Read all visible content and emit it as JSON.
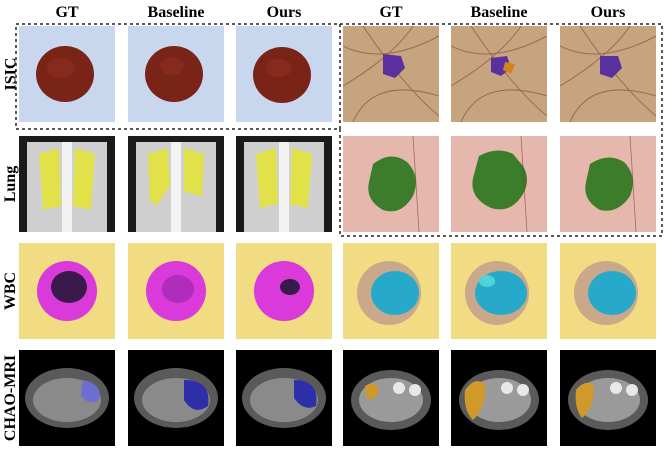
{
  "column_headers": [
    "GT",
    "Baseline",
    "Ours",
    "GT",
    "Baseline",
    "Ours"
  ],
  "row_labels": [
    "ISIC",
    "Lung",
    "WBC",
    "CHAO-MRI"
  ],
  "colors": {
    "isic_lesion": "#7a2418",
    "isic_bg": "#c9d7ee",
    "skin_lesion_purple": "#5a2fa0",
    "skin_lesion_orange": "#d4821f",
    "lung_mask": "#e2e23a",
    "green_lesion": "#3b7d2a",
    "wbc_magenta": "#d93ad9",
    "wbc_cyan": "#27a9c9",
    "mri_blue": "#2e2ea8",
    "mri_orange": "#d09a2a"
  }
}
